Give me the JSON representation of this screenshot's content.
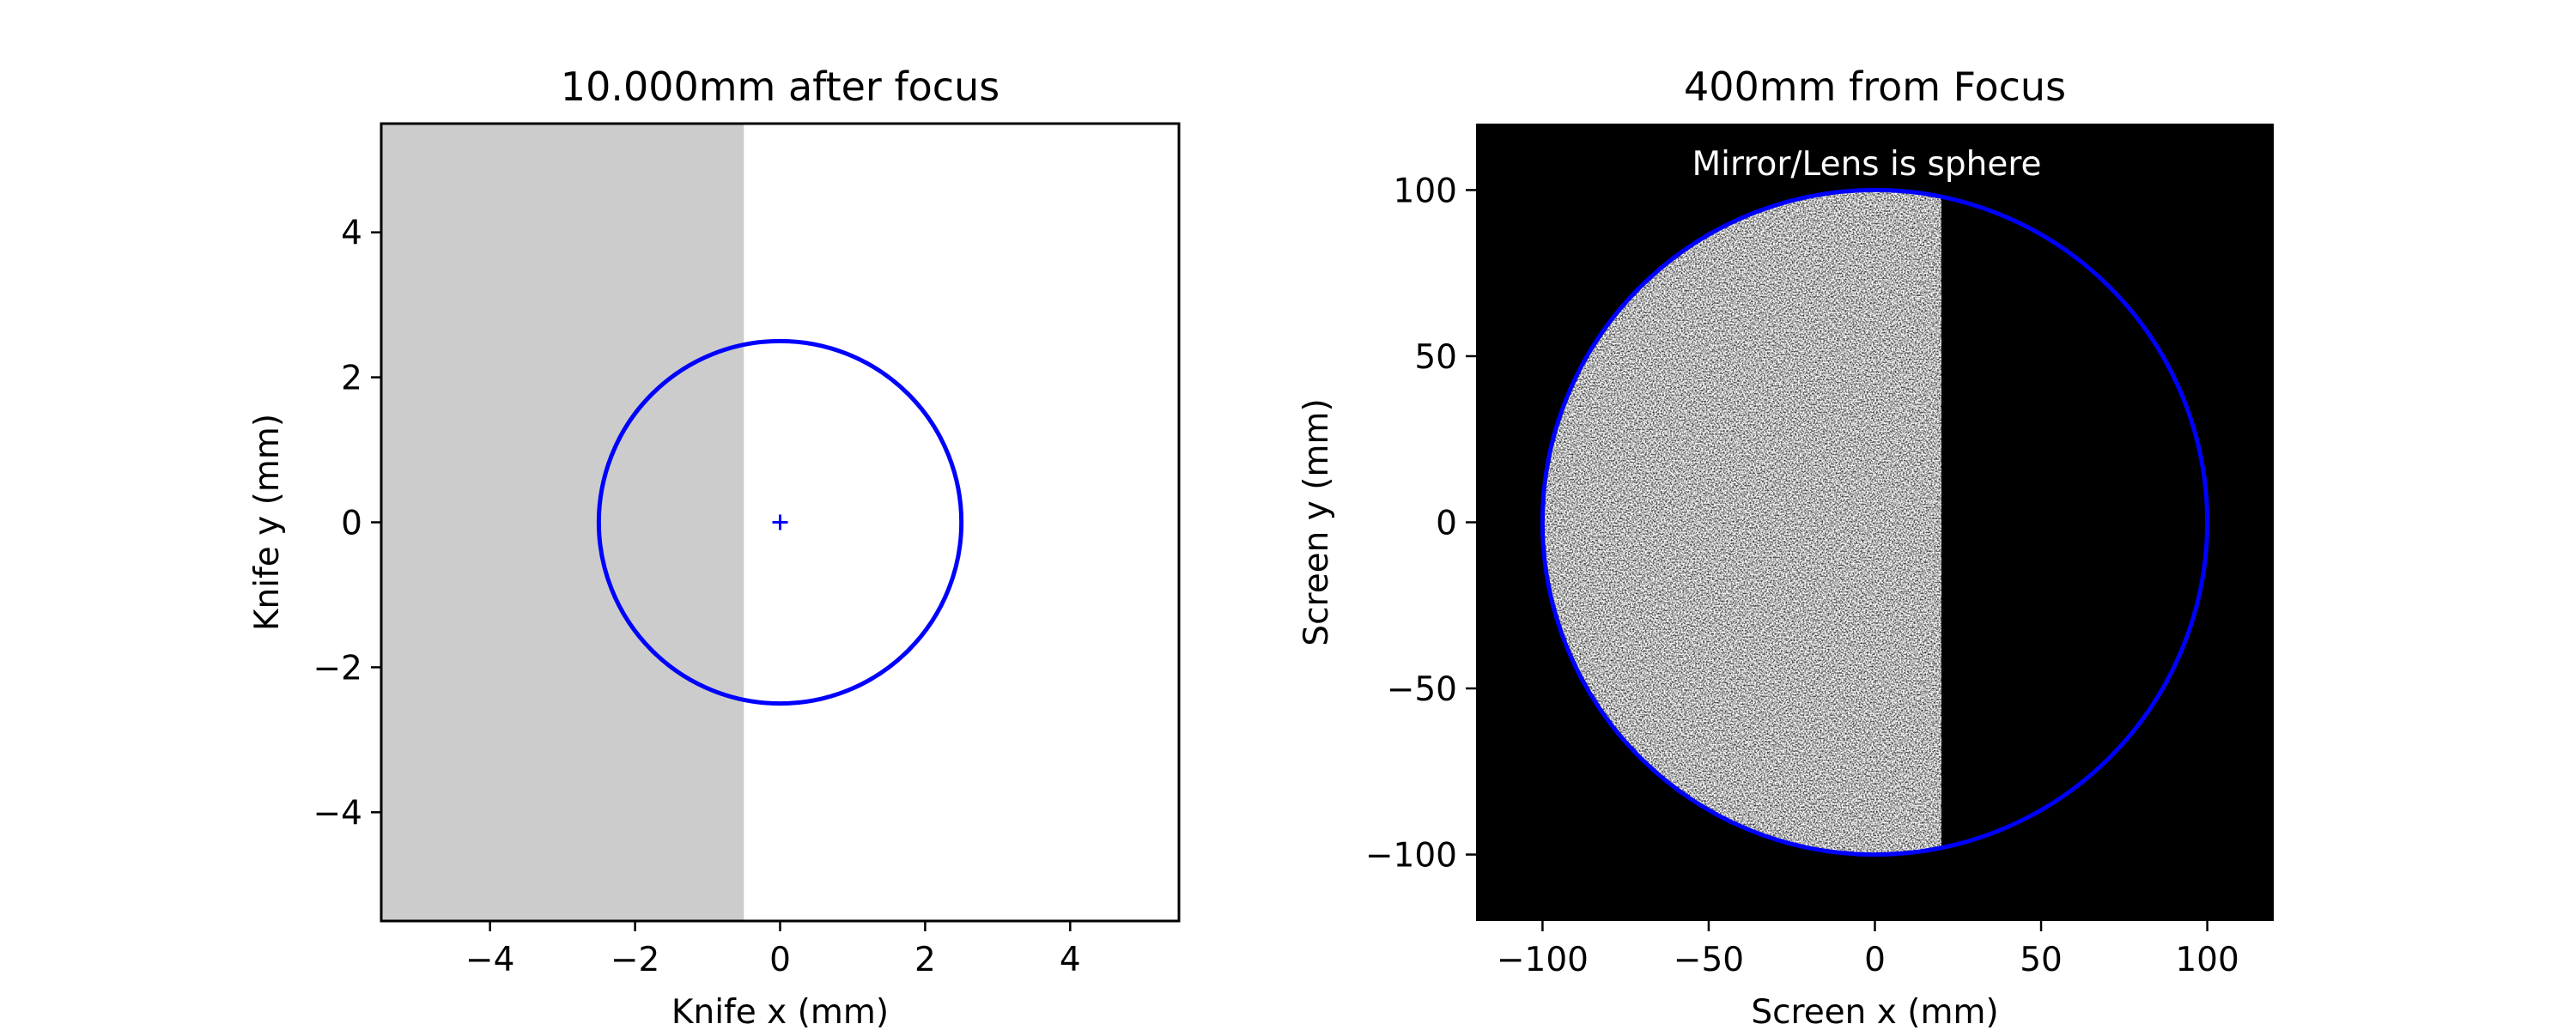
{
  "chart_data": [
    {
      "type": "scatter",
      "title": "10.000mm after focus",
      "xlabel": "Knife x (mm)",
      "ylabel": "Knife y (mm)",
      "xlim": [
        -5.5,
        5.5
      ],
      "ylim": [
        -5.5,
        5.5
      ],
      "xticks": [
        -4,
        -2,
        0,
        2,
        4
      ],
      "yticks": [
        -4,
        -2,
        0,
        2,
        4
      ],
      "xtick_labels": [
        "−4",
        "−2",
        "0",
        "2",
        "4"
      ],
      "ytick_labels": [
        "−4",
        "−2",
        "0",
        "2",
        "4"
      ],
      "knife_edge_x": -0.5,
      "knife_color": "#cccccc",
      "circle": {
        "cx": 0,
        "cy": 0,
        "r": 2.5,
        "color": "#0000ff"
      },
      "center_marker": {
        "x": 0,
        "y": 0,
        "symbol": "+",
        "color": "#0000ff"
      }
    },
    {
      "type": "scatter",
      "title": "400mm from Focus",
      "annotation": "Mirror/Lens is sphere",
      "xlabel": "Screen x (mm)",
      "ylabel": "Screen y (mm)",
      "xlim": [
        -120,
        120
      ],
      "ylim": [
        -120,
        120
      ],
      "xticks": [
        -100,
        -50,
        0,
        50,
        100
      ],
      "yticks": [
        -100,
        -50,
        0,
        50,
        100
      ],
      "xtick_labels": [
        "−100",
        "−50",
        "0",
        "50",
        "100"
      ],
      "ytick_labels": [
        "−100",
        "−50",
        "0",
        "50",
        "100"
      ],
      "background": "#000000",
      "circle": {
        "cx": 0,
        "cy": 0,
        "r": 100,
        "color": "#0000ff"
      },
      "illuminated_region": {
        "x_min": -100,
        "x_max": 20
      }
    }
  ]
}
